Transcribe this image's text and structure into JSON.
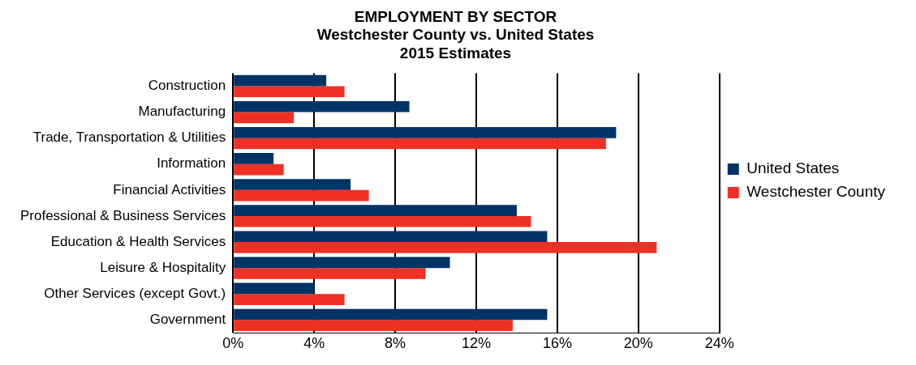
{
  "chart_data": {
    "type": "bar",
    "orientation": "horizontal",
    "title": "EMPLOYMENT BY SECTOR\nWestchester County vs. United States\n2015 Estimates",
    "categories": [
      "Construction",
      "Manufacturing",
      "Trade, Transportation & Utilities",
      "Information",
      "Financial Activities",
      "Professional & Business Services",
      "Education & Health Services",
      "Leisure & Hospitality",
      "Other Services (except Govt.)",
      "Government"
    ],
    "series": [
      {
        "name": "United States",
        "color": "#003366",
        "values": [
          4.6,
          8.7,
          18.9,
          2.0,
          5.8,
          14.0,
          15.5,
          10.7,
          4.0,
          15.5
        ]
      },
      {
        "name": "Westchester County",
        "color": "#ee3124",
        "values": [
          5.5,
          3.0,
          18.4,
          2.5,
          6.7,
          14.7,
          20.9,
          9.5,
          5.5,
          13.8
        ]
      }
    ],
    "xlim": [
      0,
      24
    ],
    "xticks": [
      {
        "value": 0,
        "label": "0%"
      },
      {
        "value": 4,
        "label": "4%"
      },
      {
        "value": 8,
        "label": "8%"
      },
      {
        "value": 12,
        "label": "12%"
      },
      {
        "value": 16,
        "label": "16%"
      },
      {
        "value": 20,
        "label": "20%"
      },
      {
        "value": 24,
        "label": "24%"
      }
    ],
    "grid": "x",
    "legend": "right"
  }
}
